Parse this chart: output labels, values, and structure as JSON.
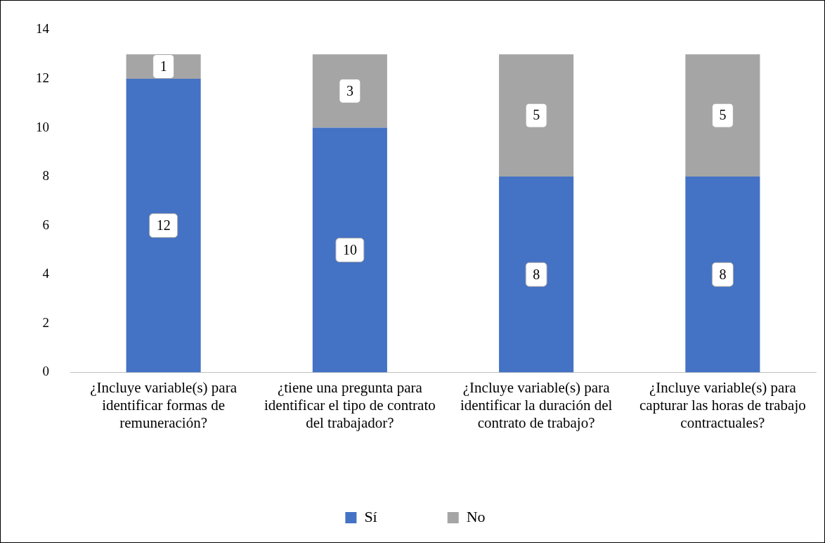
{
  "chart_data": {
    "type": "bar",
    "stacked": true,
    "categories": [
      "¿Incluye variable(s) para identificar formas de remuneración?",
      "¿tiene una pregunta para identificar el tipo de contrato del trabajador?",
      "¿Incluye variable(s) para identificar la duración del contrato de trabajo?",
      "¿Incluye variable(s) para capturar las horas de trabajo contractuales?"
    ],
    "series": [
      {
        "name": "Sí",
        "color": "#4472c4",
        "values": [
          12,
          10,
          8,
          8
        ]
      },
      {
        "name": "No",
        "color": "#a5a5a5",
        "values": [
          1,
          3,
          5,
          5
        ]
      }
    ],
    "ylim": [
      0,
      14
    ],
    "yticks": [
      0,
      2,
      4,
      6,
      8,
      10,
      12,
      14
    ],
    "grid": false,
    "legend": "bottom",
    "data_labels": true
  }
}
